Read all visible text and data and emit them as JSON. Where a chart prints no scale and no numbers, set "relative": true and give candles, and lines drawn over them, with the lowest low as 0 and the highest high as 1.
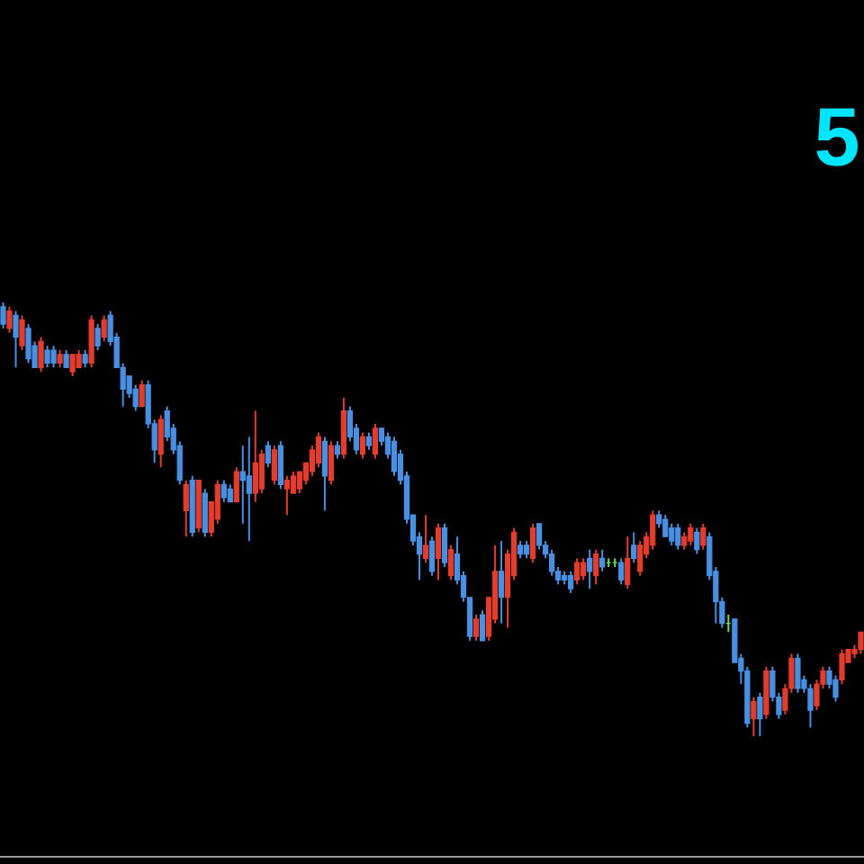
{
  "chart_data": {
    "type": "candlestick",
    "relative": true,
    "annotations": [
      "5"
    ],
    "categories": [
      null,
      null,
      null,
      null,
      null,
      null,
      null,
      null,
      null,
      null,
      null,
      null,
      null,
      null,
      null,
      null,
      null,
      null,
      null,
      null,
      null,
      null,
      null,
      null,
      null,
      null,
      null,
      null,
      null,
      null,
      null,
      null,
      null,
      null,
      null,
      null,
      null,
      null,
      null,
      null,
      null,
      null,
      null,
      null,
      null,
      null,
      null,
      null,
      null,
      null,
      null,
      null,
      null,
      null,
      null,
      null,
      null,
      null,
      null,
      null,
      null,
      null,
      null,
      null,
      null,
      null,
      null,
      null,
      null,
      null,
      null,
      null,
      null,
      null,
      null,
      null,
      null,
      null,
      null,
      null,
      null,
      null,
      null,
      null,
      null,
      null,
      null,
      null,
      null,
      null,
      null,
      null,
      null,
      null,
      null,
      null,
      null,
      null,
      null,
      null,
      null,
      null,
      null,
      null,
      null,
      null,
      null,
      null,
      null,
      null,
      null,
      null,
      null,
      null,
      null,
      null,
      null,
      null,
      null,
      null,
      null,
      null,
      null,
      null,
      null,
      null,
      null,
      null,
      null,
      null,
      null,
      null,
      null,
      null,
      null,
      null,
      null
    ],
    "ohlc": [
      [
        0.99,
        1.0,
        0.94,
        0.95
      ],
      [
        0.94,
        0.99,
        0.93,
        0.98
      ],
      [
        0.97,
        0.98,
        0.85,
        0.92
      ],
      [
        0.9,
        0.97,
        0.89,
        0.96
      ],
      [
        0.94,
        0.95,
        0.86,
        0.87
      ],
      [
        0.9,
        0.91,
        0.85,
        0.85
      ],
      [
        0.85,
        0.92,
        0.84,
        0.91
      ],
      [
        0.89,
        0.9,
        0.85,
        0.86
      ],
      [
        0.89,
        0.9,
        0.85,
        0.86
      ],
      [
        0.86,
        0.89,
        0.85,
        0.88
      ],
      [
        0.88,
        0.89,
        0.85,
        0.85
      ],
      [
        0.84,
        0.88,
        0.83,
        0.88
      ],
      [
        0.85,
        0.89,
        0.85,
        0.88
      ],
      [
        0.88,
        0.89,
        0.85,
        0.86
      ],
      [
        0.86,
        0.97,
        0.85,
        0.96
      ],
      [
        0.94,
        0.95,
        0.89,
        0.9
      ],
      [
        0.92,
        0.97,
        0.91,
        0.96
      ],
      [
        0.97,
        0.98,
        0.9,
        0.91
      ],
      [
        0.92,
        0.93,
        0.85,
        0.85
      ],
      [
        0.85,
        0.86,
        0.76,
        0.8
      ],
      [
        0.83,
        0.83,
        0.78,
        0.79
      ],
      [
        0.8,
        0.81,
        0.75,
        0.76
      ],
      [
        0.76,
        0.82,
        0.76,
        0.81
      ],
      [
        0.81,
        0.82,
        0.71,
        0.72
      ],
      [
        0.72,
        0.73,
        0.63,
        0.66
      ],
      [
        0.65,
        0.74,
        0.62,
        0.73
      ],
      [
        0.75,
        0.76,
        0.68,
        0.69
      ],
      [
        0.71,
        0.72,
        0.65,
        0.66
      ],
      [
        0.67,
        0.68,
        0.58,
        0.59
      ],
      [
        0.52,
        0.59,
        0.46,
        0.58
      ],
      [
        0.59,
        0.6,
        0.46,
        0.47
      ],
      [
        0.48,
        0.59,
        0.47,
        0.59
      ],
      [
        0.56,
        0.57,
        0.46,
        0.47
      ],
      [
        0.47,
        0.54,
        0.46,
        0.54
      ],
      [
        0.5,
        0.59,
        0.49,
        0.58
      ],
      [
        0.58,
        0.59,
        0.54,
        0.55
      ],
      [
        0.57,
        0.58,
        0.54,
        0.54
      ],
      [
        0.54,
        0.62,
        0.54,
        0.61
      ],
      [
        0.61,
        0.67,
        0.49,
        0.59
      ],
      [
        0.6,
        0.69,
        0.45,
        0.56
      ],
      [
        0.56,
        0.75,
        0.54,
        0.63
      ],
      [
        0.57,
        0.66,
        0.56,
        0.65
      ],
      [
        0.67,
        0.68,
        0.62,
        0.63
      ],
      [
        0.59,
        0.67,
        0.58,
        0.66
      ],
      [
        0.67,
        0.68,
        0.57,
        0.58
      ],
      [
        0.57,
        0.6,
        0.51,
        0.59
      ],
      [
        0.56,
        0.61,
        0.56,
        0.6
      ],
      [
        0.57,
        0.61,
        0.56,
        0.61
      ],
      [
        0.59,
        0.63,
        0.58,
        0.63
      ],
      [
        0.61,
        0.67,
        0.6,
        0.66
      ],
      [
        0.63,
        0.7,
        0.62,
        0.69
      ],
      [
        0.68,
        0.69,
        0.52,
        0.6
      ],
      [
        0.59,
        0.68,
        0.58,
        0.67
      ],
      [
        0.67,
        0.68,
        0.64,
        0.65
      ],
      [
        0.65,
        0.78,
        0.64,
        0.75
      ],
      [
        0.75,
        0.76,
        0.68,
        0.69
      ],
      [
        0.71,
        0.72,
        0.65,
        0.66
      ],
      [
        0.65,
        0.7,
        0.64,
        0.69
      ],
      [
        0.69,
        0.7,
        0.66,
        0.67
      ],
      [
        0.65,
        0.72,
        0.64,
        0.71
      ],
      [
        0.71,
        0.71,
        0.67,
        0.68
      ],
      [
        0.69,
        0.7,
        0.64,
        0.65
      ],
      [
        0.68,
        0.69,
        0.6,
        0.61
      ],
      [
        0.65,
        0.66,
        0.58,
        0.59
      ],
      [
        0.6,
        0.61,
        0.49,
        0.5
      ],
      [
        0.51,
        0.51,
        0.44,
        0.45
      ],
      [
        0.46,
        0.47,
        0.36,
        0.42
      ],
      [
        0.41,
        0.51,
        0.4,
        0.44
      ],
      [
        0.45,
        0.46,
        0.37,
        0.38
      ],
      [
        0.41,
        0.49,
        0.36,
        0.48
      ],
      [
        0.48,
        0.49,
        0.39,
        0.4
      ],
      [
        0.37,
        0.44,
        0.36,
        0.43
      ],
      [
        0.42,
        0.46,
        0.35,
        0.36
      ],
      [
        0.37,
        0.38,
        0.31,
        0.32
      ],
      [
        0.32,
        0.32,
        0.22,
        0.23
      ],
      [
        0.23,
        0.28,
        0.22,
        0.27
      ],
      [
        0.28,
        0.29,
        0.22,
        0.22
      ],
      [
        0.23,
        0.32,
        0.22,
        0.32
      ],
      [
        0.27,
        0.44,
        0.26,
        0.38
      ],
      [
        0.38,
        0.45,
        0.26,
        0.32
      ],
      [
        0.32,
        0.43,
        0.25,
        0.42
      ],
      [
        0.37,
        0.48,
        0.36,
        0.47
      ],
      [
        0.44,
        0.45,
        0.41,
        0.42
      ],
      [
        0.44,
        0.45,
        0.41,
        0.42
      ],
      [
        0.41,
        0.49,
        0.4,
        0.48
      ],
      [
        0.49,
        0.49,
        0.43,
        0.44
      ],
      [
        0.44,
        0.45,
        0.41,
        0.42
      ],
      [
        0.42,
        0.43,
        0.37,
        0.38
      ],
      [
        0.38,
        0.39,
        0.35,
        0.36
      ],
      [
        0.37,
        0.38,
        0.35,
        0.36
      ],
      [
        0.37,
        0.38,
        0.33,
        0.34
      ],
      [
        0.36,
        0.41,
        0.35,
        0.4
      ],
      [
        0.37,
        0.41,
        0.36,
        0.4
      ],
      [
        0.41,
        0.43,
        0.34,
        0.38
      ],
      [
        0.37,
        0.43,
        0.35,
        0.42
      ],
      [
        0.41,
        0.43,
        0.38,
        0.39
      ],
      [
        0.4,
        0.41,
        0.39,
        0.4
      ],
      [
        0.4,
        0.41,
        0.39,
        0.4
      ],
      [
        0.4,
        0.41,
        0.35,
        0.36
      ],
      [
        0.35,
        0.46,
        0.34,
        0.41
      ],
      [
        0.44,
        0.47,
        0.4,
        0.41
      ],
      [
        0.38,
        0.45,
        0.37,
        0.44
      ],
      [
        0.42,
        0.47,
        0.41,
        0.46
      ],
      [
        0.44,
        0.52,
        0.43,
        0.51
      ],
      [
        0.51,
        0.52,
        0.48,
        0.49
      ],
      [
        0.5,
        0.51,
        0.46,
        0.46
      ],
      [
        0.48,
        0.49,
        0.44,
        0.45
      ],
      [
        0.48,
        0.49,
        0.43,
        0.44
      ],
      [
        0.44,
        0.47,
        0.43,
        0.46
      ],
      [
        0.45,
        0.49,
        0.44,
        0.48
      ],
      [
        0.47,
        0.48,
        0.42,
        0.43
      ],
      [
        0.44,
        0.49,
        0.43,
        0.48
      ],
      [
        0.46,
        0.47,
        0.36,
        0.37
      ],
      [
        0.38,
        0.39,
        0.26,
        0.31
      ],
      [
        0.31,
        0.32,
        0.25,
        0.26
      ],
      [
        0.26,
        0.28,
        0.24,
        0.26
      ],
      [
        0.27,
        0.27,
        0.17,
        0.17
      ],
      [
        0.18,
        0.19,
        0.12,
        0.15
      ],
      [
        0.15,
        0.16,
        0.02,
        0.03
      ],
      [
        0.04,
        0.09,
        0.0,
        0.08
      ],
      [
        0.09,
        0.1,
        0.0,
        0.04
      ],
      [
        0.05,
        0.16,
        0.04,
        0.15
      ],
      [
        0.15,
        0.16,
        0.08,
        0.09
      ],
      [
        0.09,
        0.1,
        0.04,
        0.05
      ],
      [
        0.06,
        0.12,
        0.05,
        0.11
      ],
      [
        0.11,
        0.19,
        0.1,
        0.18
      ],
      [
        0.18,
        0.19,
        0.1,
        0.11
      ],
      [
        0.13,
        0.14,
        0.1,
        0.11
      ],
      [
        0.11,
        0.12,
        0.02,
        0.06
      ],
      [
        0.07,
        0.13,
        0.06,
        0.12
      ],
      [
        0.12,
        0.16,
        0.11,
        0.15
      ],
      [
        0.15,
        0.16,
        0.11,
        0.12
      ],
      [
        0.13,
        0.14,
        0.08,
        0.09
      ],
      [
        0.13,
        0.2,
        0.12,
        0.19
      ],
      [
        0.17,
        0.2,
        0.17,
        0.2
      ],
      [
        0.19,
        0.21,
        0.18,
        0.2
      ],
      [
        0.2,
        0.24,
        0.19,
        0.24
      ]
    ],
    "colors": [
      "#4a90e2",
      "#e23d2d",
      "#4a90e2",
      "#e23d2d",
      "#4a90e2",
      "#4a90e2",
      "#e23d2d",
      "#4a90e2",
      "#4a90e2",
      "#e23d2d",
      "#4a90e2",
      "#e23d2d",
      "#e23d2d",
      "#4a90e2",
      "#e23d2d",
      "#4a90e2",
      "#e23d2d",
      "#4a90e2",
      "#4a90e2",
      "#4a90e2",
      "#4a90e2",
      "#4a90e2",
      "#e23d2d",
      "#4a90e2",
      "#4a90e2",
      "#e23d2d",
      "#4a90e2",
      "#4a90e2",
      "#4a90e2",
      "#e23d2d",
      "#4a90e2",
      "#e23d2d",
      "#4a90e2",
      "#e23d2d",
      "#e23d2d",
      "#4a90e2",
      "#4a90e2",
      "#e23d2d",
      "#4a90e2",
      "#4a90e2",
      "#e23d2d",
      "#e23d2d",
      "#4a90e2",
      "#e23d2d",
      "#4a90e2",
      "#e23d2d",
      "#e23d2d",
      "#e23d2d",
      "#e23d2d",
      "#e23d2d",
      "#e23d2d",
      "#4a90e2",
      "#e23d2d",
      "#4a90e2",
      "#e23d2d",
      "#4a90e2",
      "#4a90e2",
      "#e23d2d",
      "#4a90e2",
      "#e23d2d",
      "#4a90e2",
      "#4a90e2",
      "#4a90e2",
      "#4a90e2",
      "#4a90e2",
      "#4a90e2",
      "#4a90e2",
      "#e23d2d",
      "#4a90e2",
      "#e23d2d",
      "#4a90e2",
      "#e23d2d",
      "#4a90e2",
      "#4a90e2",
      "#4a90e2",
      "#e23d2d",
      "#4a90e2",
      "#e23d2d",
      "#e23d2d",
      "#4a90e2",
      "#e23d2d",
      "#e23d2d",
      "#4a90e2",
      "#4a90e2",
      "#e23d2d",
      "#4a90e2",
      "#4a90e2",
      "#4a90e2",
      "#4a90e2",
      "#4a90e2",
      "#4a90e2",
      "#e23d2d",
      "#e23d2d",
      "#4a90e2",
      "#e23d2d",
      "#4a90e2",
      "#76d95b",
      "#76d95b",
      "#4a90e2",
      "#e23d2d",
      "#4a90e2",
      "#e23d2d",
      "#e23d2d",
      "#e23d2d",
      "#4a90e2",
      "#4a90e2",
      "#4a90e2",
      "#4a90e2",
      "#e23d2d",
      "#e23d2d",
      "#4a90e2",
      "#e23d2d",
      "#4a90e2",
      "#4a90e2",
      "#4a90e2",
      "#76d95b",
      "#4a90e2",
      "#4a90e2",
      "#4a90e2",
      "#e23d2d",
      "#4a90e2",
      "#e23d2d",
      "#4a90e2",
      "#4a90e2",
      "#e23d2d",
      "#e23d2d",
      "#4a90e2",
      "#4a90e2",
      "#4a90e2",
      "#e23d2d",
      "#e23d2d",
      "#4a90e2",
      "#4a90e2",
      "#e23d2d",
      "#e23d2d",
      "#e23d2d",
      "#e23d2d"
    ]
  }
}
